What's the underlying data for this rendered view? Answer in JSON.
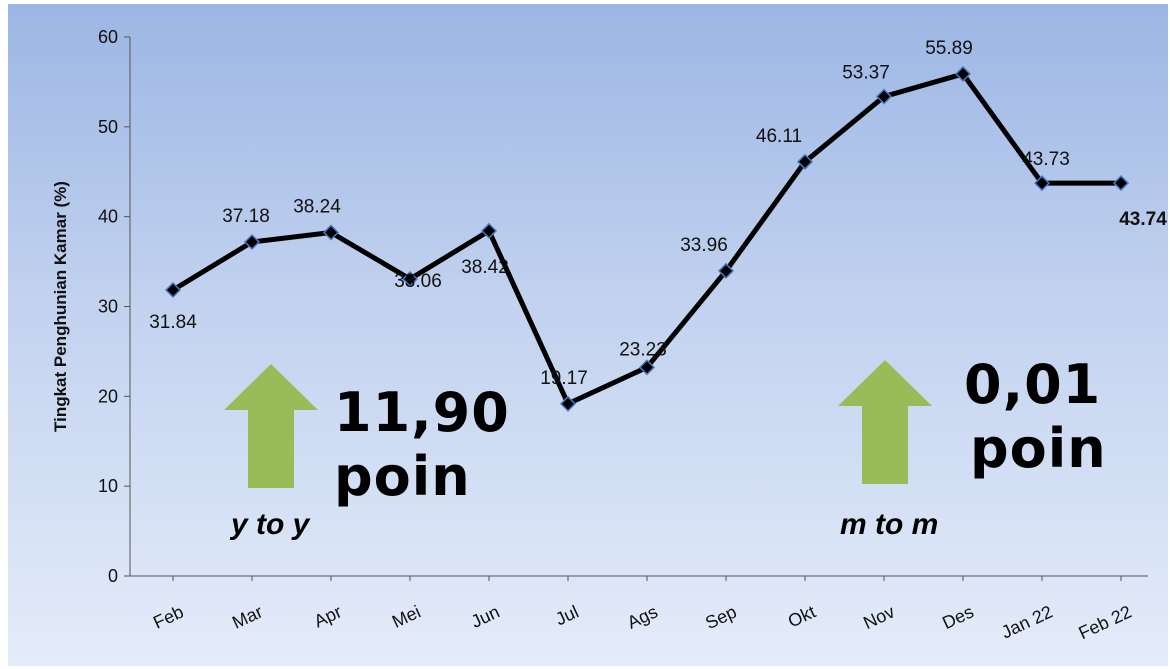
{
  "chart_data": {
    "type": "line",
    "ylabel": "Tingkat Penghunian Kamar (%)",
    "xlabel": "",
    "ylim": [
      0,
      60
    ],
    "yticks": [
      0,
      10,
      20,
      30,
      40,
      50,
      60
    ],
    "categories": [
      "Feb",
      "Mar",
      "Apr",
      "Mei",
      "Jun",
      "Jul",
      "Ags",
      "Sep",
      "Okt",
      "Nov",
      "Des",
      "Jan 22",
      "Feb 22"
    ],
    "series": [
      {
        "values": [
          31.84,
          37.18,
          38.24,
          33.06,
          38.42,
          19.17,
          23.23,
          33.96,
          46.11,
          53.37,
          55.89,
          43.73,
          43.74
        ],
        "labels": [
          "31.84",
          "37.18",
          "38.24",
          "33.06",
          "38.42",
          "19.17",
          "23.23",
          "33.96",
          "46.11",
          "53.37",
          "55.89",
          "43.73",
          "43.74"
        ]
      }
    ],
    "grid": false,
    "legend": "none",
    "colors": {
      "line": "#000000",
      "marker_edge": "#4a78c2",
      "marker_fill": "#000000",
      "arrow": "#9bbb59"
    }
  },
  "annotations": {
    "yoy": {
      "value": "11,90",
      "unit": "poin",
      "label": "y to y"
    },
    "mtm": {
      "value": "0,01",
      "unit": "poin",
      "label": "m to m"
    }
  }
}
